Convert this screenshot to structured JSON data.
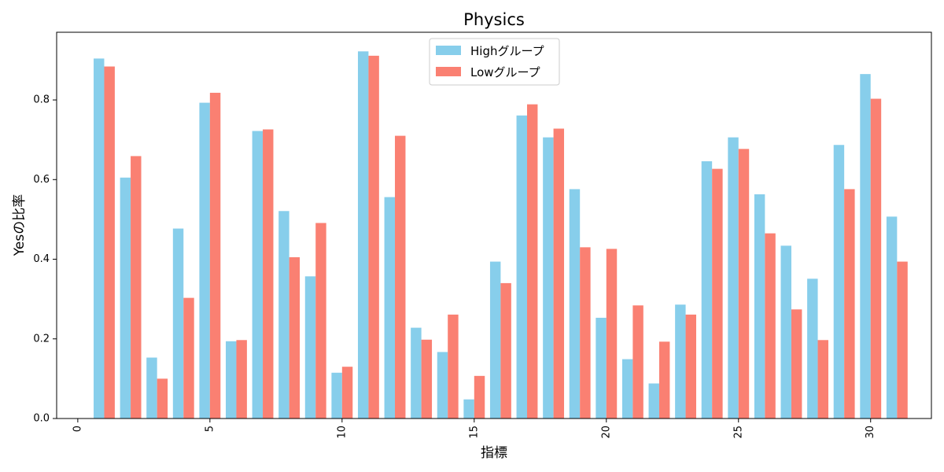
{
  "chart_data": {
    "type": "bar",
    "title": "Physics",
    "xlabel": "指標",
    "ylabel": "Yesの比率",
    "xlim": [
      -0.8,
      32.3
    ],
    "ylim": [
      0,
      0.97
    ],
    "xticks": [
      0,
      5,
      10,
      15,
      20,
      25,
      30
    ],
    "yticks": [
      0.0,
      0.2,
      0.4,
      0.6,
      0.8
    ],
    "ytick_labels": [
      "0.0",
      "0.2",
      "0.4",
      "0.6",
      "0.8"
    ],
    "grid": false,
    "legend_position": "top-center",
    "x": [
      1,
      2,
      3,
      4,
      5,
      6,
      7,
      8,
      9,
      10,
      11,
      12,
      13,
      14,
      15,
      16,
      17,
      18,
      19,
      20,
      21,
      22,
      23,
      24,
      25,
      26,
      27,
      28,
      29,
      30,
      31
    ],
    "series": [
      {
        "name": "Highグループ",
        "color": "#87CEEB",
        "values": [
          0.904,
          0.605,
          0.153,
          0.477,
          0.793,
          0.194,
          0.722,
          0.521,
          0.357,
          0.115,
          0.922,
          0.556,
          0.228,
          0.167,
          0.048,
          0.394,
          0.761,
          0.706,
          0.576,
          0.253,
          0.149,
          0.088,
          0.286,
          0.646,
          0.706,
          0.563,
          0.434,
          0.351,
          0.687,
          0.865,
          0.507
        ]
      },
      {
        "name": "Lowグループ",
        "color": "#FA8072",
        "values": [
          0.884,
          0.659,
          0.1,
          0.303,
          0.818,
          0.197,
          0.726,
          0.405,
          0.491,
          0.13,
          0.911,
          0.71,
          0.198,
          0.261,
          0.107,
          0.34,
          0.789,
          0.728,
          0.43,
          0.426,
          0.284,
          0.193,
          0.261,
          0.627,
          0.677,
          0.465,
          0.274,
          0.197,
          0.576,
          0.803,
          0.394
        ]
      }
    ]
  }
}
